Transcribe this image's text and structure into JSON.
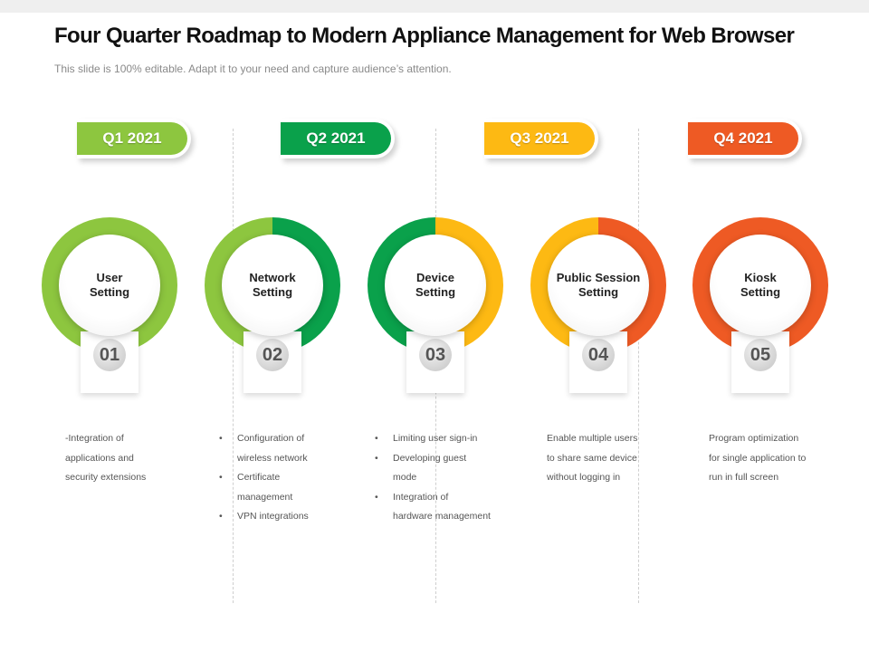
{
  "title": "Four Quarter Roadmap to Modern Appliance Management for Web Browser",
  "subtitle": "This slide is 100% editable. Adapt it to your need and capture audience’s attention.",
  "colors": {
    "green_light": "#8dc63f",
    "green_dark": "#0aa14b",
    "yellow": "#fdb913",
    "orange": "#ee5a24"
  },
  "quarters": [
    {
      "label": "Q1 2021",
      "color": "#8dc63f"
    },
    {
      "label": "Q2 2021",
      "color": "#0aa14b"
    },
    {
      "label": "Q3 2021",
      "color": "#fdb913"
    },
    {
      "label": "Q4 2021",
      "color": "#ee5a24"
    }
  ],
  "steps": [
    {
      "number": "01",
      "label": "User\nSetting",
      "ring_left": "#8dc63f",
      "ring_right": "#8dc63f",
      "desc_lines": [
        "-Integration of",
        "applications and",
        "security extensions"
      ]
    },
    {
      "number": "02",
      "label": "Network\nSetting",
      "ring_left": "#8dc63f",
      "ring_right": "#0aa14b",
      "bullets": [
        [
          "Configuration of",
          "wireless network"
        ],
        [
          "Certificate",
          "management"
        ],
        [
          "VPN integrations"
        ]
      ]
    },
    {
      "number": "03",
      "label": "Device\nSetting",
      "ring_left": "#0aa14b",
      "ring_right": "#fdb913",
      "bullets": [
        [
          "Limiting user sign-in"
        ],
        [
          "Developing guest",
          "mode"
        ],
        [
          "Integration of",
          "hardware management"
        ]
      ]
    },
    {
      "number": "04",
      "label": "Public Session\nSetting",
      "ring_left": "#fdb913",
      "ring_right": "#ee5a24",
      "desc_lines": [
        "Enable multiple users",
        "to share same device",
        "without logging in"
      ]
    },
    {
      "number": "05",
      "label": "Kiosk\nSetting",
      "ring_left": "#ee5a24",
      "ring_right": "#ee5a24",
      "desc_lines": [
        "Program optimization",
        "for single application to",
        "run in full screen"
      ]
    }
  ]
}
